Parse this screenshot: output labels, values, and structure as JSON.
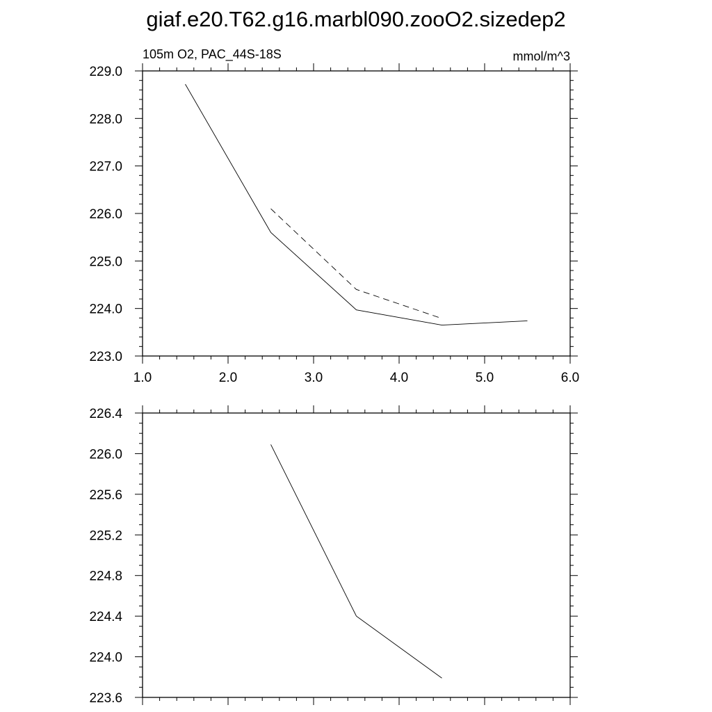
{
  "figure": {
    "title": "giaf.e20.T62.g16.marbl090.zooO2.sizedep2"
  },
  "chart_data": [
    {
      "type": "line",
      "left_label": "105m O2, PAC_44S-18S",
      "right_label": "mmol/m^3",
      "xlim": [
        1.0,
        6.0
      ],
      "ylim": [
        223.0,
        229.0
      ],
      "x_ticks": [
        1.0,
        2.0,
        3.0,
        4.0,
        5.0,
        6.0
      ],
      "x_tick_labels": [
        "1.0",
        "2.0",
        "3.0",
        "4.0",
        "5.0",
        "6.0"
      ],
      "y_ticks": [
        223.0,
        224.0,
        225.0,
        226.0,
        227.0,
        228.0,
        229.0
      ],
      "y_tick_labels": [
        "223.0",
        "224.0",
        "225.0",
        "226.0",
        "227.0",
        "228.0",
        "229.0"
      ],
      "series": [
        {
          "style": "solid",
          "x": [
            1.5,
            2.5,
            3.5,
            4.5,
            5.5
          ],
          "y": [
            228.72,
            225.6,
            223.97,
            223.65,
            223.74
          ]
        },
        {
          "style": "dashed",
          "x": [
            2.5,
            3.5,
            4.5
          ],
          "y": [
            226.1,
            224.4,
            223.79
          ]
        }
      ]
    },
    {
      "type": "line",
      "xlim": [
        1.0,
        6.0
      ],
      "ylim": [
        223.6,
        226.4
      ],
      "x_ticks": [
        1.0,
        2.0,
        3.0,
        4.0,
        5.0,
        6.0
      ],
      "y_ticks": [
        223.6,
        224.0,
        224.4,
        224.8,
        225.2,
        225.6,
        226.0,
        226.4
      ],
      "y_tick_labels": [
        "223.6",
        "224.0",
        "224.4",
        "224.8",
        "225.2",
        "225.6",
        "226.0",
        "226.4"
      ],
      "series": [
        {
          "style": "solid",
          "x": [
            2.5,
            3.5,
            4.5
          ],
          "y": [
            226.09,
            224.4,
            223.79
          ]
        }
      ]
    }
  ]
}
